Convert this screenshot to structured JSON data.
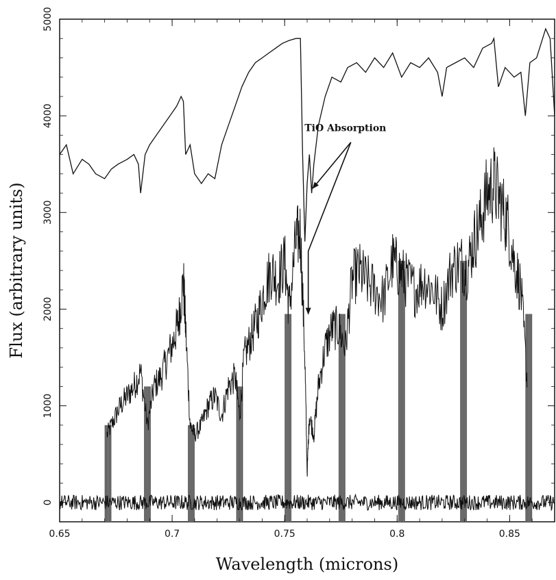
{
  "chart_data": {
    "type": "line",
    "title": "",
    "xlabel": "Wavelength (microns)",
    "ylabel": "Flux (arbitrary units)",
    "xlim": [
      0.65,
      0.87
    ],
    "ylim": [
      -200,
      5000
    ],
    "xticks": [
      0.65,
      0.7,
      0.75,
      0.8,
      0.85
    ],
    "xtick_labels": [
      "0.65",
      "0.7",
      "0.75",
      "0.8",
      "0.85"
    ],
    "yticks": [
      0,
      1000,
      2000,
      3000,
      4000,
      5000
    ],
    "ytick_labels": [
      "0",
      "1000",
      "2000",
      "3000",
      "4000",
      "5000"
    ],
    "grid": false,
    "legend": "none",
    "series": [
      {
        "style": "thin line, upper spectrum",
        "x": [
          0.65,
          0.653,
          0.656,
          0.66,
          0.663,
          0.666,
          0.67,
          0.673,
          0.676,
          0.68,
          0.683,
          0.685,
          0.686,
          0.688,
          0.69,
          0.693,
          0.696,
          0.699,
          0.702,
          0.704,
          0.705,
          0.706,
          0.708,
          0.71,
          0.713,
          0.716,
          0.719,
          0.722,
          0.725,
          0.728,
          0.731,
          0.734,
          0.737,
          0.74,
          0.743,
          0.746,
          0.749,
          0.752,
          0.755,
          0.757,
          0.758,
          0.759,
          0.76,
          0.761,
          0.762,
          0.763,
          0.765,
          0.768,
          0.771,
          0.775,
          0.778,
          0.782,
          0.786,
          0.79,
          0.794,
          0.798,
          0.802,
          0.806,
          0.81,
          0.814,
          0.818,
          0.82,
          0.822,
          0.826,
          0.83,
          0.834,
          0.838,
          0.842,
          0.843,
          0.845,
          0.848,
          0.852,
          0.855,
          0.857,
          0.859,
          0.862,
          0.866,
          0.868,
          0.87
        ],
        "y": [
          3600,
          3700,
          3400,
          3550,
          3500,
          3400,
          3350,
          3450,
          3500,
          3550,
          3600,
          3500,
          3200,
          3600,
          3700,
          3800,
          3900,
          4000,
          4100,
          4200,
          4150,
          3600,
          3700,
          3400,
          3300,
          3400,
          3350,
          3700,
          3900,
          4100,
          4300,
          4450,
          4550,
          4600,
          4650,
          4700,
          4750,
          4780,
          4800,
          4800,
          3600,
          2700,
          3300,
          3600,
          3200,
          3500,
          3900,
          4200,
          4400,
          4350,
          4500,
          4550,
          4450,
          4600,
          4500,
          4650,
          4400,
          4550,
          4500,
          4600,
          4450,
          4200,
          4500,
          4550,
          4600,
          4500,
          4700,
          4750,
          4800,
          4300,
          4500,
          4400,
          4450,
          4000,
          4550,
          4600,
          4900,
          4800,
          4000
        ]
      },
      {
        "style": "dense noisy line, lower spectrum",
        "x": [
          0.671,
          0.674,
          0.677,
          0.68,
          0.683,
          0.686,
          0.689,
          0.692,
          0.695,
          0.698,
          0.701,
          0.703,
          0.705,
          0.706,
          0.708,
          0.71,
          0.713,
          0.716,
          0.719,
          0.722,
          0.725,
          0.728,
          0.73,
          0.732,
          0.735,
          0.738,
          0.741,
          0.744,
          0.747,
          0.75,
          0.752,
          0.755,
          0.757,
          0.759,
          0.76,
          0.761,
          0.763,
          0.765,
          0.768,
          0.771,
          0.774,
          0.777,
          0.78,
          0.783,
          0.786,
          0.79,
          0.794,
          0.798,
          0.801,
          0.804,
          0.808,
          0.812,
          0.816,
          0.82,
          0.824,
          0.828,
          0.831,
          0.834,
          0.837,
          0.84,
          0.843,
          0.846,
          0.849,
          0.852,
          0.855,
          0.858
        ],
        "y": [
          700,
          850,
          1000,
          1100,
          1200,
          1350,
          800,
          1200,
          1300,
          1500,
          1700,
          1900,
          2300,
          1800,
          800,
          700,
          800,
          1000,
          1100,
          900,
          1200,
          1300,
          900,
          1500,
          1700,
          1900,
          2200,
          2400,
          2300,
          2500,
          2000,
          2700,
          2800,
          1500,
          300,
          900,
          700,
          1200,
          1600,
          1800,
          1800,
          1600,
          2300,
          2400,
          2300,
          2200,
          2100,
          2500,
          2400,
          2300,
          2200,
          2300,
          2200,
          2000,
          2400,
          2500,
          2400,
          2700,
          2900,
          3200,
          3300,
          3100,
          2900,
          2500,
          2200,
          1200
        ]
      },
      {
        "style": "residual noise near zero",
        "x": [
          0.65,
          0.87
        ],
        "y": [
          0,
          0
        ]
      }
    ],
    "shaded_bands": [
      {
        "x": 0.6715,
        "height": 800
      },
      {
        "x": 0.689,
        "height": 1200
      },
      {
        "x": 0.7085,
        "height": 800
      },
      {
        "x": 0.73,
        "height": 1200
      },
      {
        "x": 0.7515,
        "height": 1950
      },
      {
        "x": 0.7755,
        "height": 1950
      },
      {
        "x": 0.802,
        "height": 2500
      },
      {
        "x": 0.8295,
        "height": 2500
      },
      {
        "x": 0.8585,
        "height": 1950
      }
    ],
    "annotations": [
      {
        "text": "TiO Absorption",
        "label_x": 0.777,
        "label_y": 3840,
        "targets": [
          [
            0.7625,
            3250
          ],
          [
            0.7605,
            1950
          ]
        ]
      }
    ]
  }
}
